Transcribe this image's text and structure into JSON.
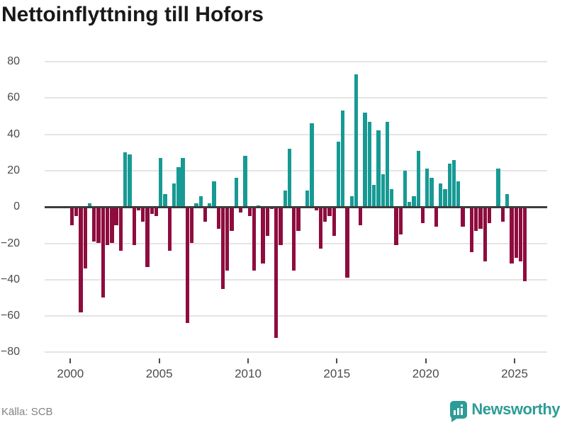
{
  "title": "Nettoinflyttning till Hofors",
  "source": "Källa: SCB",
  "brand": {
    "name": "Newsworthy"
  },
  "colors": {
    "positive": "#179a94",
    "negative": "#8e0c3e",
    "zero_line": "#3c3c3c",
    "gridline": "#e4e4e4",
    "axis_text": "#4c4c4c",
    "brand_teal": "#2d9c96"
  },
  "chart_data": {
    "type": "bar",
    "title": "Nettoinflyttning till Hofors",
    "xlabel": "",
    "ylabel": "",
    "ylim": [
      -80,
      80
    ],
    "grid": true,
    "start": {
      "year": 2000,
      "quarter": 1
    },
    "frequency": "quarterly",
    "y_ticks": [
      80,
      60,
      40,
      20,
      0,
      -20,
      -40,
      -60,
      -80
    ],
    "x_tick_years": [
      2000,
      2005,
      2010,
      2015,
      2020,
      2025
    ],
    "series": [
      {
        "name": "Nettoinflyttning",
        "values": [
          -10,
          -5,
          -58,
          -34,
          2,
          -19,
          -20,
          -50,
          -21,
          -20,
          -10,
          -24,
          30,
          29,
          -21,
          -2,
          -8,
          -33,
          -4,
          -5,
          27,
          7,
          -24,
          13,
          22,
          27,
          -64,
          -20,
          2,
          6,
          -8,
          2,
          14,
          -12,
          -45,
          -35,
          -13,
          16,
          -3,
          28,
          -5,
          -35,
          1,
          -31,
          -16,
          -1,
          -72,
          -21,
          9,
          32,
          -35,
          -13,
          0,
          9,
          46,
          -2,
          -23,
          -8,
          -5,
          -16,
          36,
          53,
          -39,
          6,
          73,
          -10,
          52,
          47,
          12,
          42,
          18,
          47,
          10,
          -21,
          -15,
          20,
          3,
          6,
          31,
          -9,
          21,
          16,
          -11,
          13,
          10,
          24,
          26,
          14,
          -11,
          0,
          -25,
          -13,
          -12,
          -30,
          -9,
          0,
          21,
          -8,
          7,
          -31,
          -28,
          -30,
          -41
        ]
      }
    ]
  }
}
